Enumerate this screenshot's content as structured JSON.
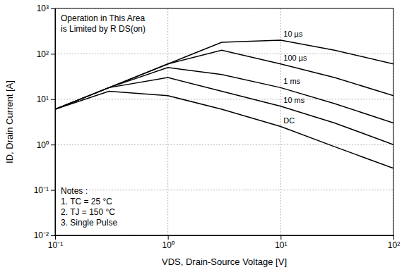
{
  "chart_data": {
    "type": "line",
    "x_label": "VDS, Drain-Source Voltage [V]",
    "y_label": "ID, Drain Current [A]",
    "annotations": [
      "Operation in This Area",
      "is Limited by R DS(on)",
      "Notes :",
      "1. TC = 25 °C",
      "2. TJ = 150 °C",
      "3. Single Pulse"
    ],
    "x": [
      0.1,
      0.3,
      1,
      3,
      10,
      30,
      100
    ],
    "series": [
      {
        "name": "10 µs",
        "color": "#000000",
        "values": [
          6,
          18,
          60,
          180,
          200,
          120,
          60
        ]
      },
      {
        "name": "100 µs",
        "color": "#000000",
        "values": [
          6,
          18,
          60,
          120,
          60,
          30,
          12
        ]
      },
      {
        "name": "1 ms",
        "color": "#000000",
        "values": [
          6,
          18,
          50,
          35,
          18,
          8,
          3
        ]
      },
      {
        "name": "10 ms",
        "color": "#000000",
        "values": [
          6,
          18,
          30,
          15,
          7,
          3,
          1
        ]
      },
      {
        "name": "DC",
        "color": "#000000",
        "values": [
          6,
          15,
          12,
          6,
          2.5,
          0.9,
          0.3
        ]
      }
    ],
    "log": true,
    "grid": true,
    "xlim": [
      0.1,
      100
    ],
    "xticks": [
      {
        "value": 0.1,
        "label": "10⁻¹"
      },
      {
        "value": 1,
        "label": "10⁰"
      },
      {
        "value": 10,
        "label": "10¹"
      },
      {
        "value": 100,
        "label": "10²"
      }
    ],
    "ylim": [
      0.01,
      1000
    ],
    "yticks": [
      {
        "value": 0.01,
        "label": "10⁻²"
      },
      {
        "value": 0.1,
        "label": "10⁻¹"
      },
      {
        "value": 1,
        "label": "10⁰"
      },
      {
        "value": 10,
        "label": "10¹"
      },
      {
        "value": 100,
        "label": "10²"
      },
      {
        "value": 1000,
        "label": "10³"
      }
    ]
  }
}
